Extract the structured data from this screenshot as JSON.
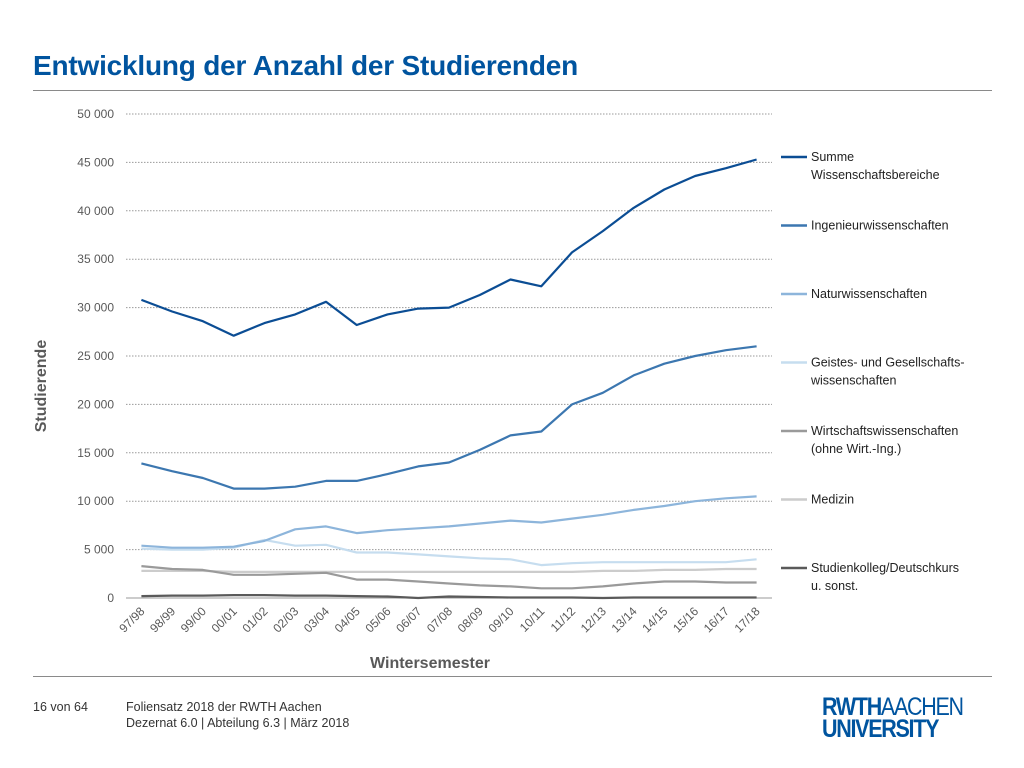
{
  "slide": {
    "title": "Entwicklung der Anzahl der Studierenden"
  },
  "footer": {
    "page": "16 von 64",
    "line1": "Foliensatz 2018 der RWTH Aachen",
    "line2": "Dezernat 6.0 | Abteilung 6.3 | März 2018"
  },
  "logo": {
    "rwth": "RWTH",
    "aachen": "AACHEN",
    "university": "UNIVERSITY"
  },
  "chart_data": {
    "type": "line",
    "xlabel": "Wintersemester",
    "ylabel": "Studierende",
    "ylim": [
      0,
      50000
    ],
    "yticks": [
      0,
      5000,
      10000,
      15000,
      20000,
      25000,
      30000,
      35000,
      40000,
      45000,
      50000
    ],
    "ytick_labels": [
      "0",
      "5 000",
      "10 000",
      "15 000",
      "20 000",
      "25 000",
      "30 000",
      "35 000",
      "40 000",
      "45 000",
      "50 000"
    ],
    "grid": "horizontal-dotted",
    "legend_position": "right",
    "categories": [
      "97/98",
      "98/99",
      "99/00",
      "00/01",
      "01/02",
      "02/03",
      "03/04",
      "04/05",
      "05/06",
      "06/07",
      "07/08",
      "08/09",
      "09/10",
      "10/11",
      "11/12",
      "12/13",
      "13/14",
      "14/15",
      "15/16",
      "16/17",
      "17/18"
    ],
    "series": [
      {
        "name": "Summe Wissenschaftsbereiche",
        "legend_lines": [
          "Summe",
          "Wissenschaftsbereiche"
        ],
        "color": "#0b4d94",
        "values": [
          30800,
          29600,
          28600,
          27100,
          28400,
          29300,
          30600,
          28200,
          29300,
          29900,
          30000,
          31300,
          32900,
          32200,
          35700,
          37900,
          40300,
          42200,
          43600,
          44400,
          45300
        ]
      },
      {
        "name": "Ingenieurwissenschaften",
        "legend_lines": [
          "Ingenieurwissenschaften"
        ],
        "color": "#3c77b0",
        "values": [
          13900,
          13100,
          12400,
          11300,
          11300,
          11500,
          12100,
          12100,
          12800,
          13600,
          14000,
          15300,
          16800,
          17200,
          20000,
          21200,
          23000,
          24200,
          25000,
          25600,
          26000
        ]
      },
      {
        "name": "Naturwissenschaften",
        "legend_lines": [
          "Naturwissenschaften"
        ],
        "color": "#8db5db",
        "values": [
          5400,
          5200,
          5200,
          5300,
          5900,
          7100,
          7400,
          6700,
          7000,
          7200,
          7400,
          7700,
          8000,
          7800,
          8200,
          8600,
          9100,
          9500,
          10000,
          10300,
          10500
        ]
      },
      {
        "name": "Geistes- und Gesellschafts- wissenschaften",
        "legend_lines": [
          "Geistes- und Gesellschafts-",
          "wissenschaften"
        ],
        "color": "#c6ddef",
        "values": [
          5100,
          5000,
          5000,
          5200,
          6000,
          5400,
          5500,
          4700,
          4700,
          4500,
          4300,
          4100,
          4000,
          3400,
          3600,
          3700,
          3700,
          3700,
          3700,
          3700,
          4000
        ]
      },
      {
        "name": "Wirtschaftswissenschaften (ohne Wirt.-Ing.)",
        "legend_lines": [
          "Wirtschaftswissenschaften",
          "(ohne Wirt.-Ing.)"
        ],
        "color": "#9a9a9a",
        "values": [
          3300,
          3000,
          2900,
          2400,
          2400,
          2500,
          2600,
          1900,
          1900,
          1700,
          1500,
          1300,
          1200,
          1000,
          1000,
          1200,
          1500,
          1700,
          1700,
          1600,
          1600
        ]
      },
      {
        "name": "Medizin",
        "legend_lines": [
          "Medizin"
        ],
        "color": "#cccccc",
        "values": [
          2800,
          2800,
          2800,
          2700,
          2700,
          2700,
          2700,
          2700,
          2700,
          2700,
          2700,
          2700,
          2700,
          2700,
          2700,
          2800,
          2800,
          2900,
          2900,
          3000,
          3000
        ]
      },
      {
        "name": "Studienkolleg/Deutschkurs u. sonst.",
        "legend_lines": [
          "Studienkolleg/Deutschkurs",
          "u. sonst."
        ],
        "color": "#5a5a5a",
        "values": [
          200,
          250,
          250,
          300,
          300,
          250,
          250,
          200,
          150,
          0,
          150,
          100,
          50,
          50,
          50,
          0,
          50,
          50,
          50,
          50,
          50
        ]
      }
    ]
  }
}
